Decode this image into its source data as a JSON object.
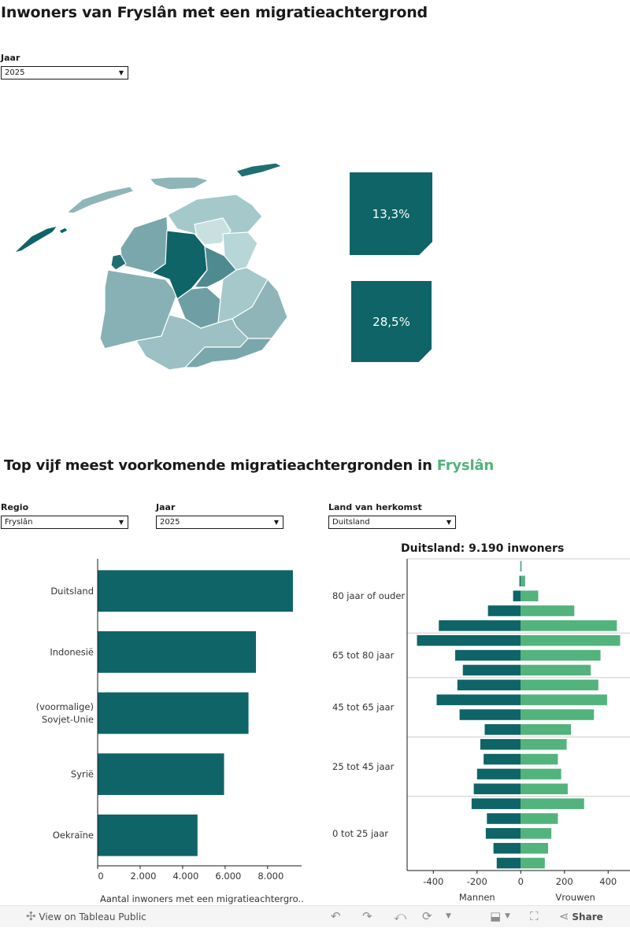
{
  "title": "Inwoners van Fryslân met een migratieachtergrond",
  "top_filter": {
    "label": "Jaar",
    "value": "2025"
  },
  "kpis": [
    "13,3%",
    "28,5%"
  ],
  "colors": {
    "accent": "#0e6466",
    "green": "#52b37c",
    "map_light": "#b9d6d8",
    "map_mid": "#7ea9ae",
    "map_dark": "#0e6466"
  },
  "section": {
    "title_prefix": "Top vijf meest voorkomende migratieachtergronden in ",
    "title_region": "Fryslân"
  },
  "filters": [
    {
      "label": "Regio",
      "value": "Fryslân"
    },
    {
      "label": "Jaar",
      "value": "2025"
    },
    {
      "label": "Land van herkomst",
      "value": "Duitsland"
    }
  ],
  "chart_data": [
    {
      "type": "bar",
      "orientation": "horizontal",
      "categories": [
        "Duitsland",
        "Indonesië",
        "(voormalige) Sovjet-Unie",
        "Syrië",
        "Oekraïne"
      ],
      "category_lines": [
        [
          "Duitsland"
        ],
        [
          "Indonesië"
        ],
        [
          "(voormalige)",
          "Sovjet-Unie"
        ],
        [
          "Syrië"
        ],
        [
          "Oekraïne"
        ]
      ],
      "values": [
        9190,
        7450,
        7100,
        5950,
        4700
      ],
      "xlim": [
        0,
        9600
      ],
      "xticks": [
        0,
        2000,
        4000,
        6000,
        8000
      ],
      "xtick_labels": [
        "0",
        "2.000",
        "4.000",
        "6.000",
        "8.000"
      ],
      "xlabel": "Aantal inwoners met een migratieachtergro..",
      "color": "#0e6466"
    },
    {
      "type": "bar",
      "orientation": "horizontal",
      "subtype": "population-pyramid",
      "title": "Duitsland: 9.190 inwoners",
      "xlim": [
        -520,
        500
      ],
      "xticks": [
        -400,
        -200,
        0,
        200,
        400
      ],
      "xtick_labels": [
        "-400",
        "-200",
        "0",
        "200",
        "400"
      ],
      "xlabels": [
        "Mannen",
        "Vrouwen"
      ],
      "group_labels": [
        "80 jaar of ouder",
        "65 tot 80 jaar",
        "45 tot 65 jaar",
        "25 tot 45 jaar",
        "0 tot 25 jaar"
      ],
      "group_sizes": [
        5,
        3,
        4,
        4,
        5
      ],
      "series": [
        {
          "name": "Mannen",
          "color": "#0e6466",
          "values": [
            -2,
            -6,
            -35,
            -150,
            -375,
            -475,
            -300,
            -265,
            -290,
            -385,
            -280,
            -165,
            -185,
            -170,
            -200,
            -215,
            -225,
            -155,
            -160,
            -125,
            -110
          ]
        },
        {
          "name": "Vrouwen",
          "color": "#52b37c",
          "values": [
            4,
            20,
            80,
            245,
            440,
            455,
            365,
            320,
            355,
            395,
            335,
            230,
            210,
            170,
            185,
            215,
            290,
            170,
            140,
            125,
            110
          ]
        }
      ]
    }
  ],
  "toolbar": {
    "view_label": "View on Tableau Public",
    "share_label": "Share"
  }
}
